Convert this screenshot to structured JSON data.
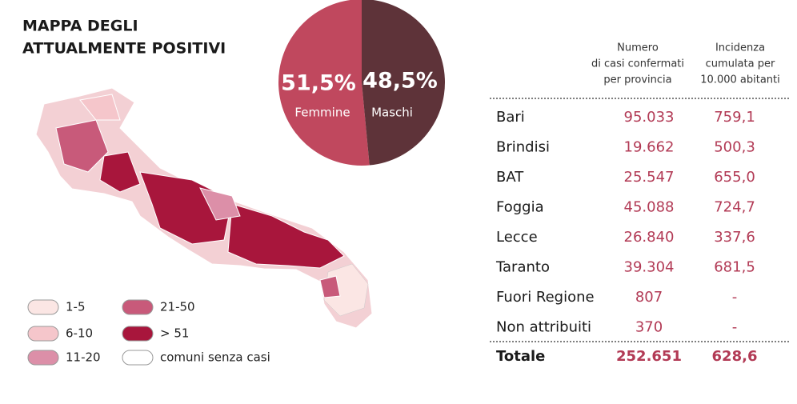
{
  "header": {
    "title": [
      "MAPPA DEGLI",
      "ATTUALMENTE POSITIVI"
    ]
  },
  "chart_data": {
    "type": "pie",
    "categories": [
      "Femmine",
      "Maschi"
    ],
    "values": [
      51.5,
      48.5
    ],
    "value_labels": [
      "51,5%",
      "48,5%"
    ],
    "colors": [
      "#c0485e",
      "#5e3339"
    ]
  },
  "legend": [
    {
      "label": "1-5",
      "color": "#fbe6e4"
    },
    {
      "label": "6-10",
      "color": "#f5c6cb"
    },
    {
      "label": "11-20",
      "color": "#dc8fa8"
    },
    {
      "label": "21-50",
      "color": "#c85a7a"
    },
    {
      "label": "> 51",
      "color": "#a8163c"
    },
    {
      "label": "comuni senza casi",
      "color": "#ffffff"
    }
  ],
  "table": {
    "header": [
      [],
      [
        "Numero",
        "di casi confermati",
        "per provincia"
      ],
      [
        "Incidenza",
        "cumulata per",
        "10.000 abitanti"
      ]
    ],
    "rows": [
      [
        "Bari",
        "95.033",
        "759,1"
      ],
      [
        "Brindisi",
        "19.662",
        "500,3"
      ],
      [
        "BAT",
        "25.547",
        "655,0"
      ],
      [
        "Foggia",
        "45.088",
        "724,7"
      ],
      [
        "Lecce",
        "26.840",
        "337,6"
      ],
      [
        "Taranto",
        "39.304",
        "681,5"
      ],
      [
        "Fuori Regione",
        "807",
        "-"
      ],
      [
        "Non attribuiti",
        "370",
        "-"
      ]
    ],
    "total": [
      "Totale",
      "252.651",
      "628,6"
    ]
  }
}
